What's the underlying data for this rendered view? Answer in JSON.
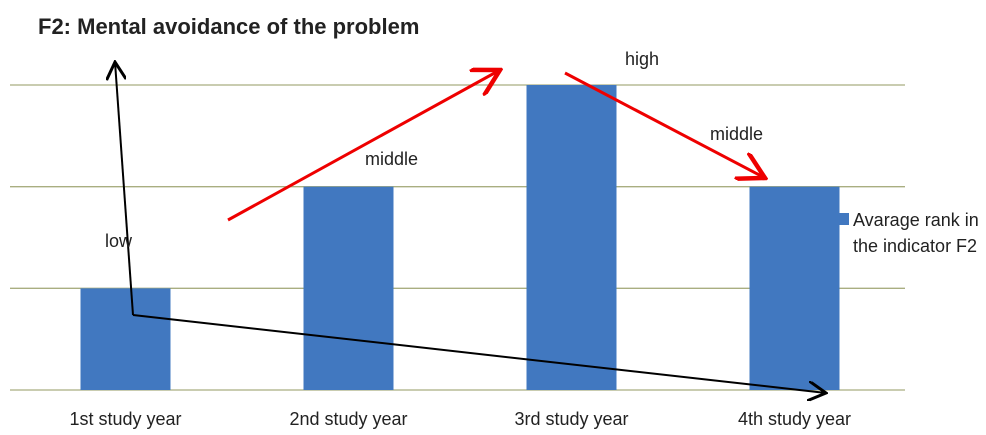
{
  "chart_data": {
    "type": "bar",
    "title": "F2: Mental avoidance of the problem",
    "categories": [
      "1st study year",
      "2nd  study year",
      "3rd study year",
      "4th study year"
    ],
    "series": [
      {
        "name": "Avarage rank  in the indicator F2",
        "color": "#4178c0",
        "values": [
          1,
          2,
          3,
          2
        ]
      }
    ],
    "ylim": [
      0,
      3
    ],
    "yticks": [
      0,
      1,
      2,
      3
    ],
    "grid": true,
    "legend": "right",
    "annotations": [
      "low",
      "middle",
      "high",
      "middle"
    ]
  }
}
